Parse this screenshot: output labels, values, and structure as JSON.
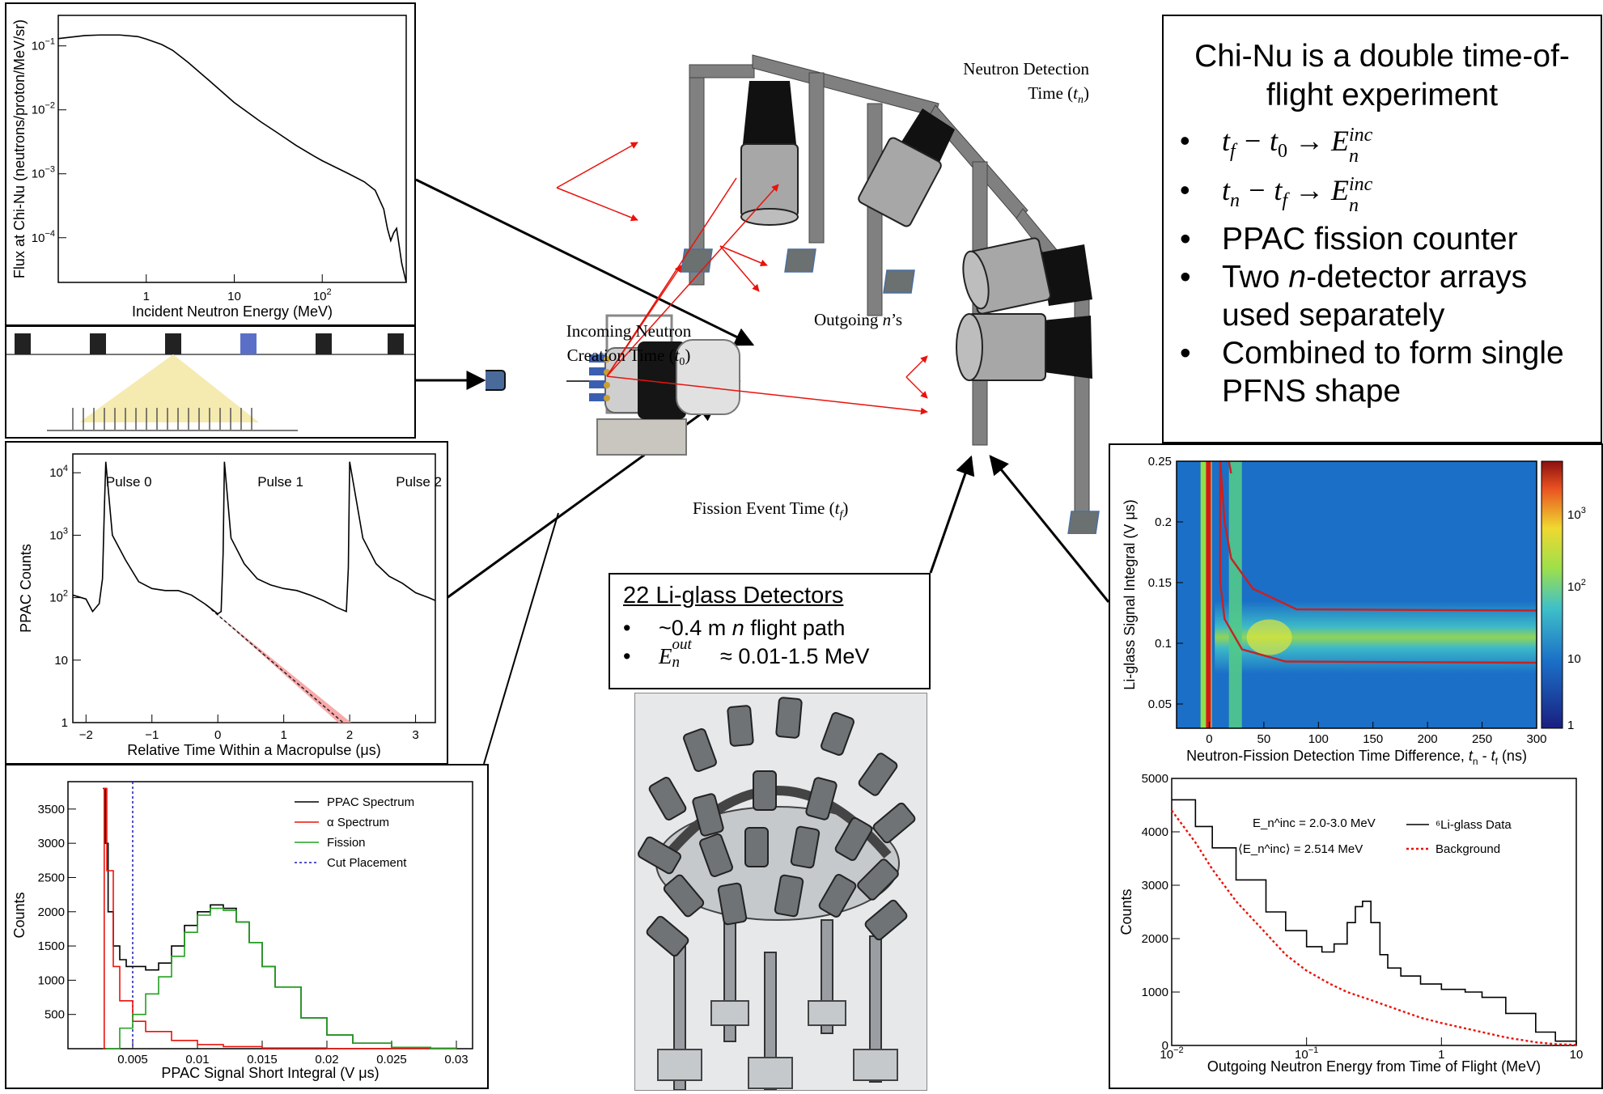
{
  "summary": {
    "title": "Chi-Nu is a double time-of-flight experiment",
    "bullets": [
      {
        "id": "tof1",
        "text": "t_f − t_0 → E_n^inc"
      },
      {
        "id": "tof2",
        "text": "t_n − t_f → E_n^inc"
      },
      {
        "id": "ppac",
        "text": "PPAC fission counter"
      },
      {
        "id": "arrays",
        "text": "Two n-detector arrays used separately"
      },
      {
        "id": "combined",
        "text": "Combined to form single PFNS shape"
      }
    ],
    "tof1": {
      "a": "t",
      "a_sub": "f",
      "b": "t",
      "b_sub": "0",
      "res": "E",
      "res_sub": "n",
      "res_sup": "inc"
    },
    "tof2": {
      "a": "t",
      "a_sub": "n",
      "b": "t",
      "b_sub": "f",
      "res": "E",
      "res_sub": "n",
      "res_sup": "inc"
    },
    "arrays_pre": "Two ",
    "arrays_n": "n",
    "arrays_post": "-detector arrays used separately"
  },
  "diagram": {
    "neutron_detection_time": "Neutron Detection Time (t_n)",
    "neutron_detection_line1": "Neutron Detection",
    "neutron_detection_line2": "Time (",
    "t_n": "t",
    "t_n_sub": "n",
    "outgoing_n": "Outgoing n’s",
    "outgoing_pre": "Outgoing ",
    "outgoing_n_var": "n",
    "outgoing_post": "’s",
    "incoming_line1": "Incoming Neutron",
    "incoming_line2": "Creation Time (",
    "t0_var": "t",
    "t0_sub": "0",
    "fission_label": "Fission Event Time (",
    "tf_var": "t",
    "tf_sub": "f"
  },
  "liglass_box": {
    "title": "22 Li-glass Detectors",
    "bullet1_pre": "~0.4 m ",
    "bullet1_n": "n",
    "bullet1_post": " flight path",
    "bullet2_var": "E",
    "bullet2_sub": "n",
    "bullet2_sup": "out",
    "bullet2_post": " ≈ 0.01-1.5 MeV"
  },
  "colors": {
    "red": "#e8130c",
    "black_line": "#000000",
    "green": "#22a020",
    "blue_dash": "#1a1ab8",
    "yellow": "#f5eab0",
    "pulse_blue": "#5b6fc9"
  },
  "chart_data": [
    {
      "id": "flux",
      "type": "line",
      "xlabel": "Incident Neutron Energy (MeV)",
      "ylabel": "Flux at Chi-Nu (neutrons/proton/MeV/sr)",
      "xscale": "log",
      "yscale": "log",
      "xlim": [
        0.1,
        900
      ],
      "ylim": [
        2e-05,
        0.3
      ],
      "xticks": [
        "1",
        "10",
        "10^2"
      ],
      "yticks": [
        "10^-4",
        "10^-3",
        "10^-2",
        "10^-1"
      ],
      "series": [
        {
          "x": [
            0.1,
            0.2,
            0.3,
            0.5,
            0.8,
            1,
            1.5,
            2,
            3,
            5,
            8,
            10,
            20,
            30,
            50,
            80,
            100,
            200,
            300,
            400,
            500,
            550,
            600,
            650,
            700,
            800,
            900
          ],
          "y": [
            0.13,
            0.145,
            0.148,
            0.148,
            0.14,
            0.128,
            0.105,
            0.085,
            0.055,
            0.03,
            0.017,
            0.013,
            0.0065,
            0.0045,
            0.0028,
            0.0019,
            0.0016,
            0.001,
            0.00075,
            0.00055,
            0.00028,
            0.00014,
            9e-05,
            0.00012,
            0.00014,
            4e-05,
            2e-05
          ]
        }
      ]
    },
    {
      "id": "ppac_time",
      "type": "line",
      "xlabel": "Relative Time Within a Macropulse (μs)",
      "ylabel": "PPAC Counts",
      "yscale": "log",
      "xlim": [
        -2.2,
        3.3
      ],
      "ylim": [
        1,
        20000
      ],
      "xticks": [
        "−2",
        "−1",
        "0",
        "1",
        "2",
        "3"
      ],
      "yticks": [
        "1",
        "10",
        "10^2",
        "10^3",
        "10^4"
      ],
      "annotations": [
        "Pulse 0",
        "Pulse 1",
        "Pulse 2"
      ],
      "series": [
        {
          "x": [
            -2.2,
            -2.0,
            -1.9,
            -1.8,
            -1.75,
            -1.72,
            -1.7,
            -1.6,
            -1.4,
            -1.2,
            -1.0,
            -0.8,
            -0.6,
            -0.4,
            -0.2,
            0,
            0.05,
            0.08,
            0.1,
            0.2,
            0.4,
            0.6,
            0.8,
            1.0,
            1.2,
            1.4,
            1.6,
            1.8,
            1.95,
            1.98,
            2.0,
            2.2,
            2.4,
            2.6,
            2.8,
            3.0,
            3.2,
            3.3
          ],
          "y": [
            110,
            95,
            60,
            80,
            200,
            3000,
            15000,
            1000,
            400,
            180,
            140,
            130,
            130,
            110,
            80,
            55,
            60,
            500,
            15000,
            900,
            350,
            200,
            160,
            140,
            130,
            110,
            90,
            70,
            60,
            300,
            15000,
            900,
            350,
            220,
            170,
            120,
            100,
            90
          ]
        }
      ],
      "fit_line": {
        "x": [
          -0.1,
          1.9
        ],
        "y": [
          65,
          1
        ]
      }
    },
    {
      "id": "ppac_signal",
      "type": "line",
      "xlabel": "PPAC Signal Short Integral (V μs)",
      "ylabel": "Counts",
      "xlim": [
        0,
        0.03
      ],
      "ylim": [
        0,
        3900
      ],
      "xticks": [
        "0.005",
        "0.01",
        "0.015",
        "0.02",
        "0.025",
        "0.03"
      ],
      "yticks": [
        "500",
        "1000",
        "1500",
        "2000",
        "2500",
        "3000",
        "3500"
      ],
      "legend": [
        "PPAC Spectrum",
        "α Spectrum",
        "Fission",
        "Cut Placement"
      ],
      "cut_x": 0.005,
      "series": [
        {
          "name": "PPAC Spectrum",
          "x": [
            0.0027,
            0.0029,
            0.0031,
            0.0035,
            0.004,
            0.0045,
            0.005,
            0.006,
            0.007,
            0.008,
            0.009,
            0.01,
            0.011,
            0.012,
            0.013,
            0.014,
            0.015,
            0.016,
            0.018,
            0.02,
            0.022,
            0.025,
            0.028,
            0.03
          ],
          "y": [
            3800,
            3000,
            2000,
            1500,
            1300,
            1200,
            1200,
            1150,
            1250,
            1500,
            1800,
            2000,
            2100,
            2050,
            1850,
            1550,
            1200,
            900,
            450,
            200,
            80,
            20,
            5,
            0
          ]
        },
        {
          "name": "α Spectrum",
          "x": [
            0.0027,
            0.0028,
            0.003,
            0.0035,
            0.004,
            0.005,
            0.006,
            0.008,
            0.01,
            0.012,
            0.015,
            0.02,
            0.03
          ],
          "y": [
            0,
            3800,
            2600,
            1200,
            700,
            400,
            250,
            120,
            60,
            30,
            10,
            3,
            0
          ]
        },
        {
          "name": "Fission",
          "x": [
            0.0029,
            0.004,
            0.005,
            0.006,
            0.007,
            0.008,
            0.009,
            0.01,
            0.011,
            0.012,
            0.013,
            0.014,
            0.015,
            0.016,
            0.018,
            0.02,
            0.022,
            0.025,
            0.028,
            0.03
          ],
          "y": [
            0,
            300,
            500,
            800,
            1050,
            1350,
            1700,
            1950,
            2050,
            2020,
            1850,
            1550,
            1200,
            900,
            450,
            200,
            80,
            20,
            5,
            0
          ]
        }
      ]
    },
    {
      "id": "heatmap",
      "type": "heatmap",
      "xlabel": "Neutron-Fission Detection Time Difference, t_n - t_f (ns)",
      "xlabel_pre": "Neutron-Fission Detection Time Difference, ",
      "xlabel_post": " (ns)",
      "ylabel": "Li-glass Signal Integral (V μs)",
      "xlim": [
        -30,
        300
      ],
      "ylim": [
        0.03,
        0.25
      ],
      "xticks": [
        "0",
        "50",
        "100",
        "150",
        "200",
        "250",
        "300"
      ],
      "yticks": [
        "0.05",
        "0.1",
        "0.15",
        "0.2",
        "0.25"
      ],
      "zticks": [
        "1",
        "10",
        "10^2",
        "10^3"
      ]
    },
    {
      "id": "outgoing",
      "type": "line",
      "xlabel": "Outgoing Neutron Energy from Time of Flight (MeV)",
      "ylabel": "Counts",
      "xscale": "log",
      "xlim": [
        0.01,
        10
      ],
      "ylim": [
        0,
        5000
      ],
      "xticks": [
        "10^-2",
        "10^-1",
        "1",
        "10"
      ],
      "yticks": [
        "0",
        "1000",
        "2000",
        "3000",
        "4000",
        "5000"
      ],
      "annotation_line1": "E_n^inc = 2.0-3.0 MeV",
      "annotation_line2": "⟨E_n^inc⟩ = 2.514 MeV",
      "legend": [
        "⁶Li-glass Data",
        "Background"
      ],
      "series": [
        {
          "name": "⁶Li-glass Data",
          "x": [
            0.01,
            0.015,
            0.02,
            0.03,
            0.05,
            0.07,
            0.1,
            0.13,
            0.16,
            0.2,
            0.23,
            0.26,
            0.3,
            0.35,
            0.4,
            0.5,
            0.7,
            1,
            1.5,
            2,
            3,
            5,
            7,
            10
          ],
          "y": [
            4600,
            4100,
            3700,
            3100,
            2500,
            2150,
            1850,
            1750,
            1900,
            2300,
            2600,
            2700,
            2300,
            1700,
            1450,
            1300,
            1150,
            1050,
            1000,
            900,
            600,
            250,
            80,
            20
          ]
        },
        {
          "name": "Background",
          "x": [
            0.01,
            0.015,
            0.02,
            0.03,
            0.05,
            0.07,
            0.1,
            0.15,
            0.2,
            0.3,
            0.5,
            0.7,
            1,
            1.5,
            2,
            3,
            5,
            7,
            10
          ],
          "y": [
            4400,
            3800,
            3300,
            2700,
            2100,
            1700,
            1400,
            1150,
            1000,
            850,
            650,
            520,
            420,
            320,
            250,
            150,
            60,
            25,
            10
          ]
        }
      ]
    }
  ]
}
